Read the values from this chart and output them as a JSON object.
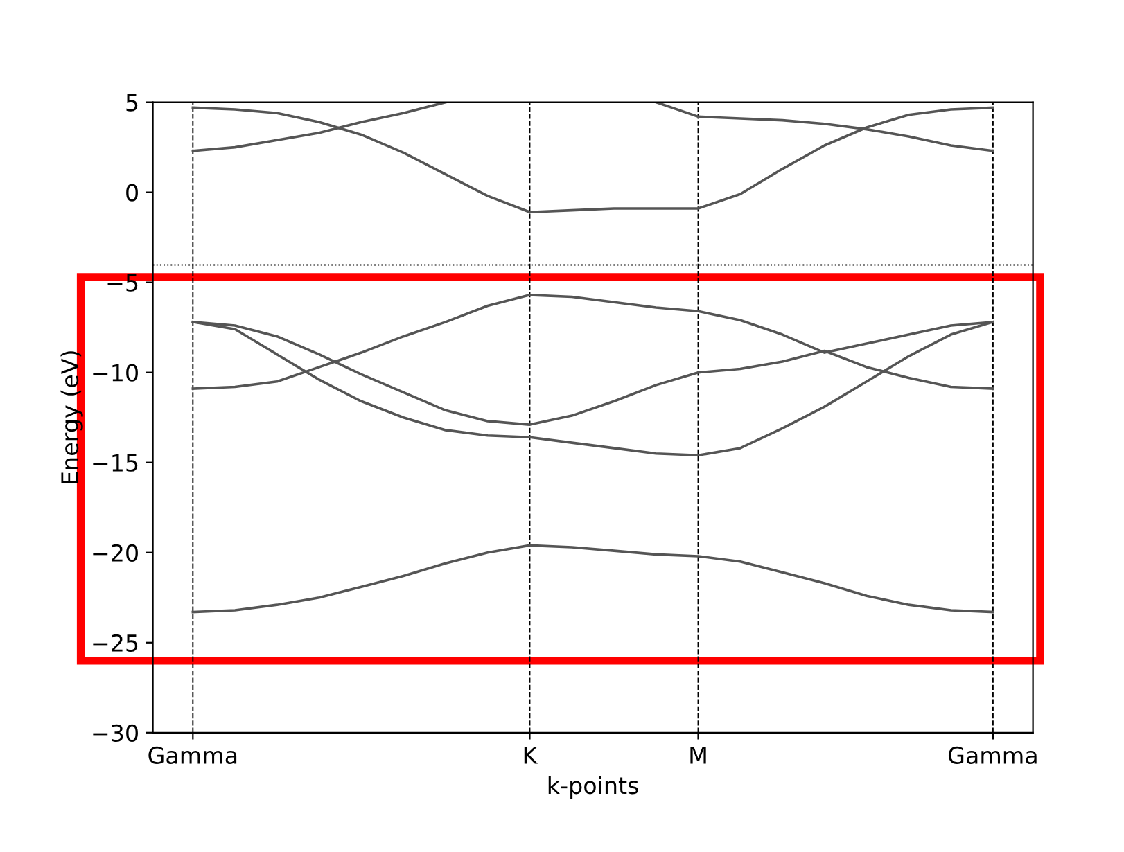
{
  "chart_data": {
    "type": "line",
    "xlabel": "k-points",
    "ylabel": "Energy (eV)",
    "categories": [
      "Gamma",
      null,
      null,
      null,
      null,
      null,
      null,
      null,
      "K",
      null,
      null,
      null,
      "M",
      null,
      null,
      null,
      null,
      null,
      null,
      "Gamma"
    ],
    "ylim": [
      -30,
      5
    ],
    "yticks": [
      -30,
      -25,
      -20,
      -15,
      -10,
      -5,
      0,
      5
    ],
    "grid": "x",
    "legend": false,
    "line_style": "solid",
    "ref_lines": [
      {
        "axis": "y",
        "value": -4.03,
        "color": "#000000",
        "line_style": "dotted"
      }
    ],
    "series": [
      {
        "color": "#555555",
        "values": [
          -23.3,
          -23.2,
          -22.9,
          -22.5,
          -21.9,
          -21.3,
          -20.6,
          -20.0,
          -19.6,
          -19.7,
          -19.9,
          -20.1,
          -20.2,
          -20.5,
          -21.1,
          -21.7,
          -22.4,
          -22.9,
          -23.2,
          -23.3
        ]
      },
      {
        "color": "#555555",
        "values": [
          -10.9,
          -10.8,
          -10.5,
          -9.7,
          -8.9,
          -8.0,
          -7.2,
          -6.3,
          -5.7,
          -5.8,
          -6.1,
          -6.4,
          -6.6,
          -7.1,
          -7.9,
          -8.9,
          -8.4,
          -7.9,
          -7.4,
          -7.2
        ]
      },
      {
        "color": "#555555",
        "values": [
          -7.2,
          -7.4,
          -8.0,
          -9.0,
          -10.1,
          -11.1,
          -12.1,
          -12.7,
          -12.9,
          -12.4,
          -11.6,
          -10.7,
          -10.0,
          -9.8,
          -9.4,
          -8.8,
          -9.7,
          -10.3,
          -10.8,
          -10.9
        ]
      },
      {
        "color": "#555555",
        "values": [
          -7.2,
          -7.6,
          -9.0,
          -10.4,
          -11.6,
          -12.5,
          -13.2,
          -13.5,
          -13.6,
          -13.9,
          -14.2,
          -14.5,
          -14.6,
          -14.2,
          -13.1,
          -11.9,
          -10.5,
          -9.1,
          -7.9,
          -7.2
        ]
      },
      {
        "color": "#555555",
        "values": [
          2.3,
          2.5,
          2.9,
          3.3,
          3.9,
          4.4,
          5.0,
          null,
          null,
          null,
          null,
          null,
          null,
          null,
          null,
          null,
          null,
          null,
          null,
          null
        ]
      },
      {
        "color": "#555555",
        "values": [
          4.7,
          4.6,
          4.4,
          3.9,
          3.2,
          2.2,
          1.0,
          -0.2,
          -1.1,
          -1.0,
          -0.9,
          -0.9,
          -0.9,
          -0.1,
          1.3,
          2.6,
          3.6,
          4.3,
          4.6,
          4.7
        ]
      },
      {
        "color": "#555555",
        "values": [
          null,
          null,
          null,
          null,
          null,
          null,
          null,
          null,
          null,
          null,
          null,
          5.0,
          4.2,
          4.1,
          4.0,
          3.8,
          3.5,
          3.1,
          2.6,
          2.3
        ]
      }
    ]
  }
}
